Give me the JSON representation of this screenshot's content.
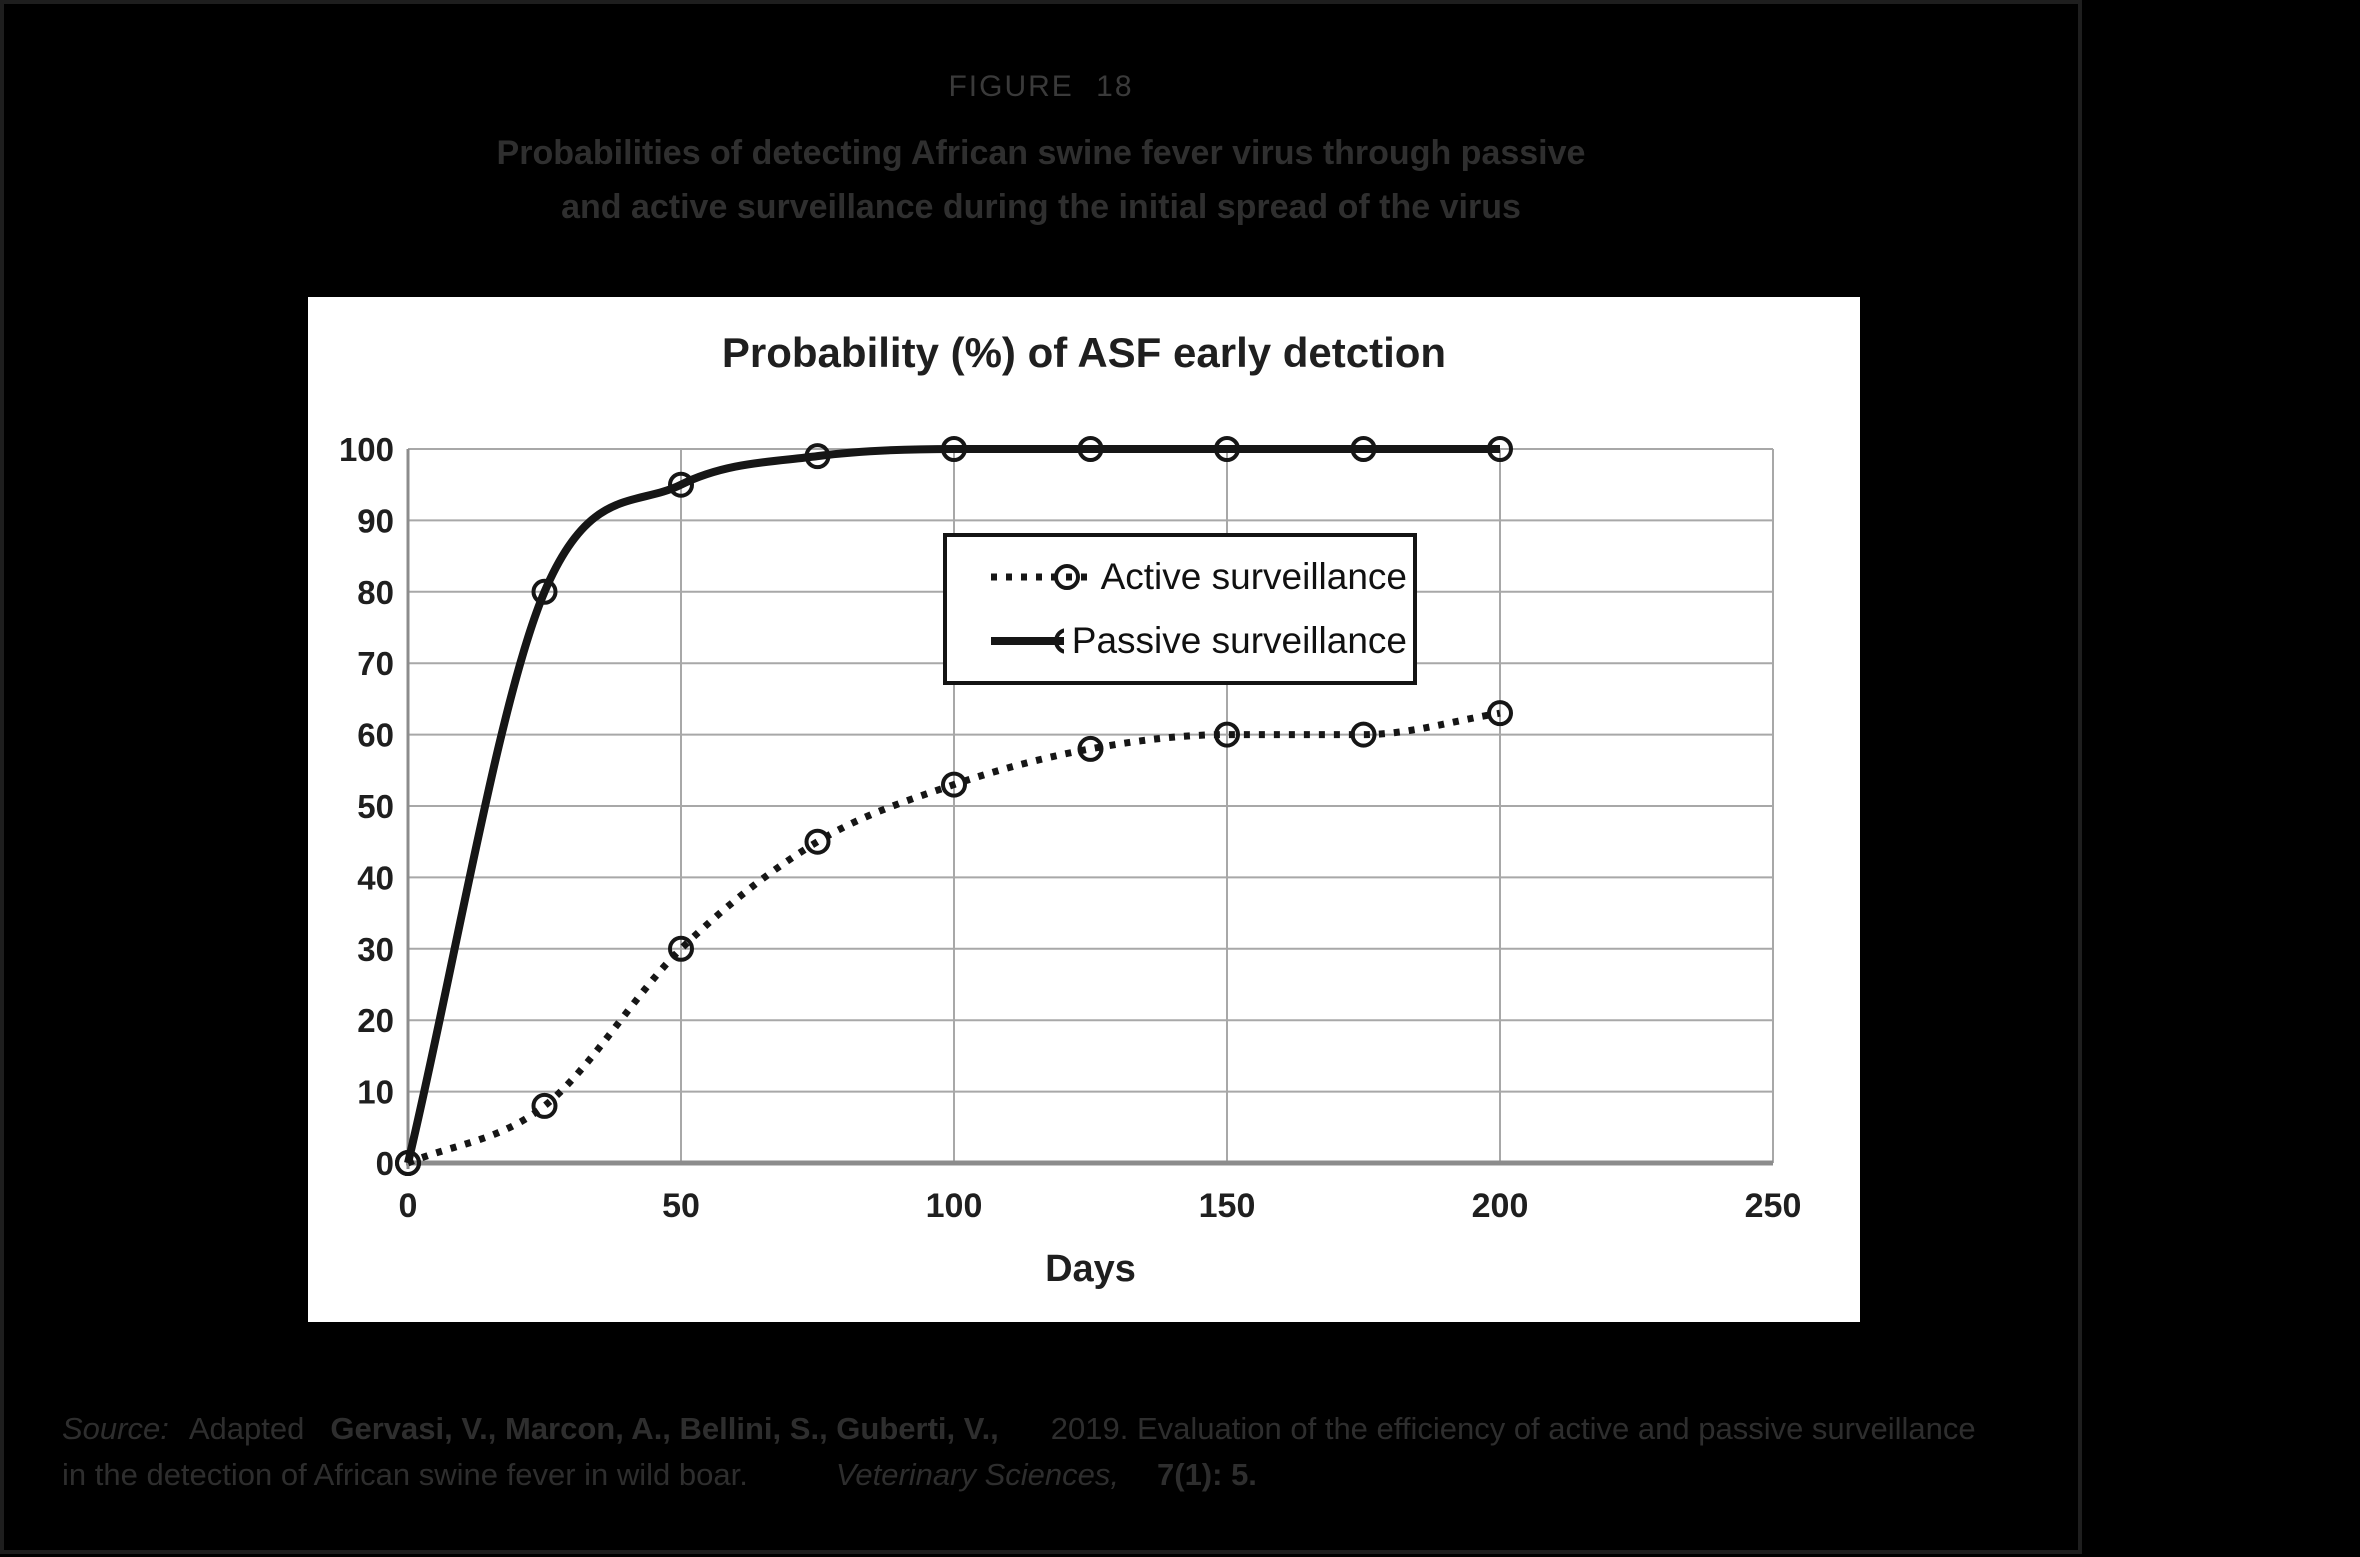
{
  "figure": {
    "label": "FIGURE 18",
    "title_line1": "Probabilities of detecting African swine fever virus through passive",
    "title_line2": "and active surveillance during the initial spread of the virus"
  },
  "chart_data": {
    "type": "line",
    "title": "Probability (%) of ASF early detction",
    "xlabel": "Days",
    "ylabel": "",
    "x": [
      0,
      25,
      50,
      75,
      100,
      125,
      150,
      175,
      200
    ],
    "series": [
      {
        "name": "Active surveillance",
        "style": "dotted",
        "marker": "open-circle",
        "values": [
          0,
          8,
          30,
          45,
          53,
          58,
          60,
          60,
          63
        ]
      },
      {
        "name": "Passive surveillance",
        "style": "solid",
        "marker": "open-circle",
        "values": [
          0,
          80,
          95,
          99,
          100,
          100,
          100,
          100,
          100
        ]
      }
    ],
    "xlim": [
      0,
      250
    ],
    "ylim": [
      0,
      100
    ],
    "xticks": [
      0,
      50,
      100,
      150,
      200,
      250
    ],
    "yticks": [
      0,
      10,
      20,
      30,
      40,
      50,
      60,
      70,
      80,
      90,
      100
    ],
    "grid": true,
    "legend_position": "upper-center",
    "colors": {
      "series_line": "#161616",
      "grid_line": "#a8a8a8",
      "axis_line": "#8c8c8c",
      "plot_background": "#ffffff",
      "page_background": "#000000",
      "tick_text": "#1f1f1f"
    }
  },
  "source": {
    "prefix": "Source:",
    "adapted": "Adapted",
    "authors": "Gervasi, V., Marcon, A., Bellini, S., Guberti, V.,",
    "text_line1": "2019. Evaluation of the efficiency of active and passive surveillance",
    "text_line2": "in the detection of African swine fever in wild boar.",
    "journal": "Veterinary Sciences,",
    "issue": "7(1): 5."
  }
}
